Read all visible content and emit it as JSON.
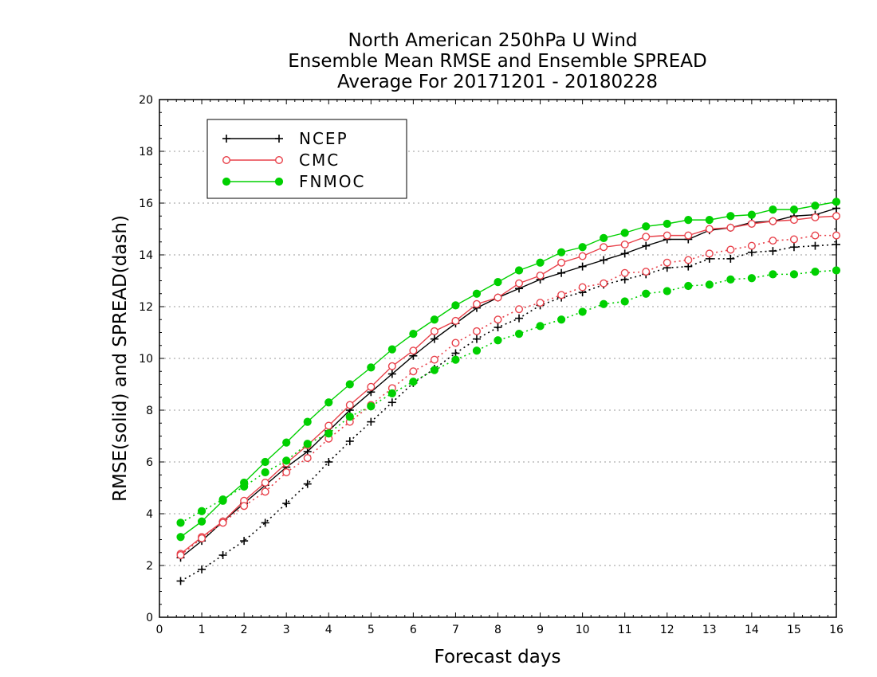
{
  "chart_data": {
    "type": "line",
    "title_lines": [
      "North American 250hPa U Wind",
      "Ensemble Mean RMSE and Ensemble SPREAD",
      "Average For 20171201 - 20180228"
    ],
    "xlabel": "Forecast days",
    "ylabel": "RMSE(solid) and SPREAD(dash)",
    "xlim": [
      0,
      16
    ],
    "ylim": [
      0,
      20
    ],
    "x_ticks": [
      "0",
      "1",
      "2",
      "3",
      "4",
      "5",
      "6",
      "7",
      "8",
      "9",
      "10",
      "11",
      "12",
      "13",
      "14",
      "15",
      "16"
    ],
    "y_ticks": [
      "0",
      "2",
      "4",
      "6",
      "8",
      "10",
      "12",
      "14",
      "16",
      "18",
      "20"
    ],
    "grid": true,
    "legend_position": "top-left",
    "x": [
      0.5,
      1,
      1.5,
      2,
      2.5,
      3,
      3.5,
      4,
      4.5,
      5,
      5.5,
      6,
      6.5,
      7,
      7.5,
      8,
      8.5,
      9,
      9.5,
      10,
      10.5,
      11,
      11.5,
      12,
      12.5,
      13,
      13.5,
      14,
      14.5,
      15,
      15.5,
      16
    ],
    "series": [
      {
        "name": "NCEP",
        "style": "solid",
        "marker": "plus",
        "color": "#000000",
        "values": [
          2.3,
          2.95,
          3.7,
          4.4,
          5.1,
          5.8,
          6.4,
          7.2,
          8.0,
          8.7,
          9.4,
          10.1,
          10.75,
          11.35,
          11.95,
          12.35,
          12.7,
          13.05,
          13.3,
          13.55,
          13.8,
          14.05,
          14.35,
          14.6,
          14.6,
          14.95,
          15.05,
          15.25,
          15.3,
          15.5,
          15.55,
          15.8
        ]
      },
      {
        "name": "CMC",
        "style": "solid",
        "marker": "open-circle",
        "color": "#e8414a",
        "values": [
          2.45,
          3.1,
          3.7,
          4.5,
          5.2,
          5.95,
          6.65,
          7.4,
          8.2,
          8.9,
          9.7,
          10.3,
          11.05,
          11.45,
          12.1,
          12.35,
          12.9,
          13.2,
          13.7,
          13.95,
          14.3,
          14.4,
          14.7,
          14.75,
          14.75,
          15.0,
          15.05,
          15.2,
          15.3,
          15.35,
          15.45,
          15.5
        ]
      },
      {
        "name": "FNMOC",
        "style": "solid",
        "marker": "filled-circle",
        "color": "#00d000",
        "values": [
          3.1,
          3.7,
          4.5,
          5.2,
          6.0,
          6.75,
          7.55,
          8.3,
          9.0,
          9.65,
          10.35,
          10.95,
          11.5,
          12.05,
          12.5,
          12.95,
          13.4,
          13.7,
          14.1,
          14.3,
          14.65,
          14.85,
          15.1,
          15.2,
          15.35,
          15.35,
          15.5,
          15.55,
          15.75,
          15.75,
          15.9,
          16.05
        ]
      },
      {
        "name": "",
        "style": "dotted",
        "marker": "plus",
        "color": "#000000",
        "values": [
          1.4,
          1.85,
          2.4,
          2.95,
          3.65,
          4.4,
          5.15,
          6.0,
          6.8,
          7.55,
          8.3,
          9.05,
          9.6,
          10.2,
          10.75,
          11.2,
          11.55,
          12.05,
          12.35,
          12.55,
          12.85,
          13.05,
          13.25,
          13.5,
          13.55,
          13.85,
          13.85,
          14.1,
          14.15,
          14.3,
          14.35,
          14.4
        ]
      },
      {
        "name": "",
        "style": "dotted",
        "marker": "open-circle",
        "color": "#e8414a",
        "values": [
          2.4,
          3.05,
          3.65,
          4.3,
          4.85,
          5.6,
          6.15,
          6.9,
          7.55,
          8.2,
          8.85,
          9.5,
          9.95,
          10.6,
          11.05,
          11.5,
          11.9,
          12.15,
          12.45,
          12.75,
          12.9,
          13.3,
          13.35,
          13.7,
          13.8,
          14.05,
          14.2,
          14.35,
          14.55,
          14.6,
          14.75,
          14.75
        ]
      },
      {
        "name": "",
        "style": "dotted",
        "marker": "filled-circle",
        "color": "#00d000",
        "values": [
          3.65,
          4.1,
          4.55,
          5.05,
          5.6,
          6.05,
          6.7,
          7.1,
          7.75,
          8.15,
          8.65,
          9.1,
          9.55,
          9.95,
          10.3,
          10.7,
          10.95,
          11.25,
          11.5,
          11.8,
          12.1,
          12.2,
          12.5,
          12.6,
          12.8,
          12.85,
          13.05,
          13.1,
          13.25,
          13.25,
          13.35,
          13.4
        ]
      }
    ]
  }
}
